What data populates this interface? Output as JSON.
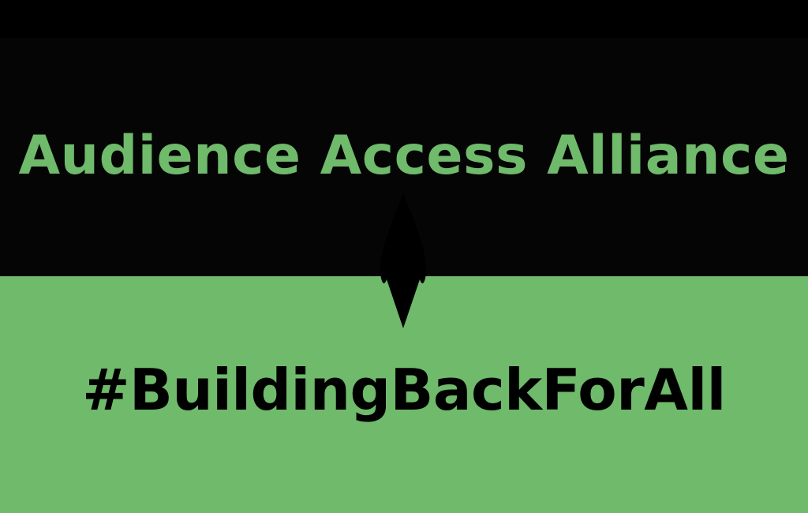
{
  "banner": {
    "title": "Audience Access Alliance",
    "hashtag": "#BuildingBackForAll"
  },
  "colors": {
    "dark_background": "#050505",
    "accent_green": "#6fba6b",
    "hashtag_text": "#000000"
  }
}
